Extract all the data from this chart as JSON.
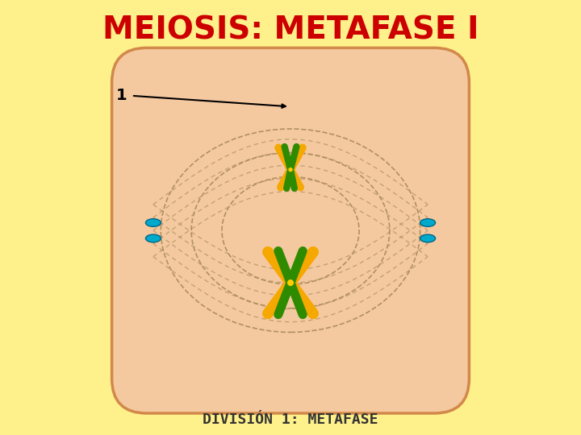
{
  "title": "MEIOSIS: METAFASE I",
  "title_color": "#cc0000",
  "title_fontsize": 28,
  "subtitle": "DIVISIÓN 1: METAFASE",
  "subtitle_color": "#333333",
  "subtitle_fontsize": 13,
  "bg_color": "#fef08a",
  "cell_bg": "#f5c9a0",
  "cell_border": "#d2884a",
  "label_1": "1",
  "orange_color": "#f5a800",
  "green_color": "#2e8b00",
  "cyan_color": "#00aacc",
  "dashed_color": "#b09060"
}
